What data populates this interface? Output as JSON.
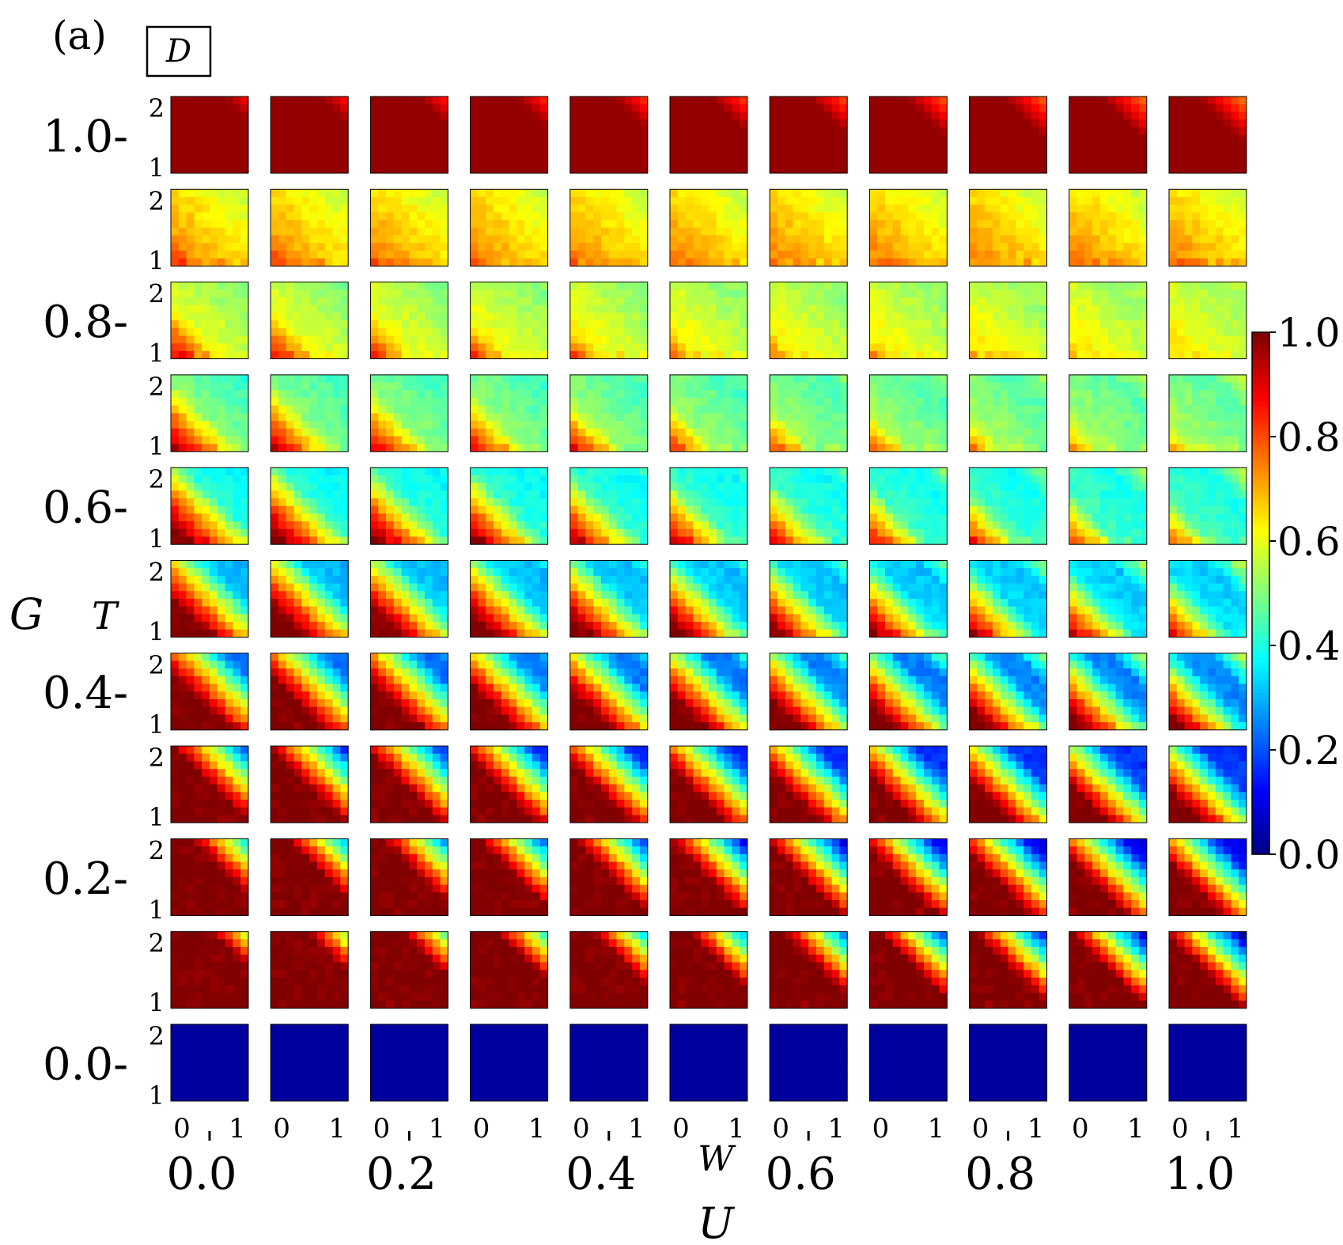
{
  "chart_data": {
    "type": "heatmap",
    "panel_label": "(a)",
    "quantity_label": "D",
    "outer_x_label": "U",
    "outer_y_label": "G",
    "inner_x_label": "W",
    "inner_y_label": "T",
    "outer_x_values": [
      0.0,
      0.1,
      0.2,
      0.3,
      0.4,
      0.5,
      0.6,
      0.7,
      0.8,
      0.9,
      1.0
    ],
    "outer_x_ticklabels": [
      "0.0",
      "0.2",
      "0.4",
      "0.6",
      "0.8",
      "1.0"
    ],
    "outer_x_tick_indices": [
      0,
      2,
      4,
      6,
      8,
      10
    ],
    "outer_y_values": [
      1.0,
      0.9,
      0.8,
      0.7,
      0.6,
      0.5,
      0.4,
      0.3,
      0.2,
      0.1,
      0.0
    ],
    "outer_y_ticklabels": [
      "1.0-",
      "0.8-",
      "0.6-",
      "0.4-",
      "0.2-",
      "0.0-"
    ],
    "outer_y_tick_indices": [
      0,
      2,
      4,
      6,
      8,
      10
    ],
    "inner_x_ticklabels": [
      "0",
      "1"
    ],
    "inner_y_ticklabels": [
      "2",
      "1"
    ],
    "inner_x_range": [
      0,
      1
    ],
    "inner_y_range": [
      1,
      2
    ],
    "grid_resolution": 10,
    "colorbar": {
      "colormap": "jet",
      "range": [
        0.0,
        1.0
      ],
      "ticklabels": [
        "1.0",
        "0.8",
        "0.6",
        "0.4",
        "0.2",
        "0.0"
      ]
    }
  }
}
